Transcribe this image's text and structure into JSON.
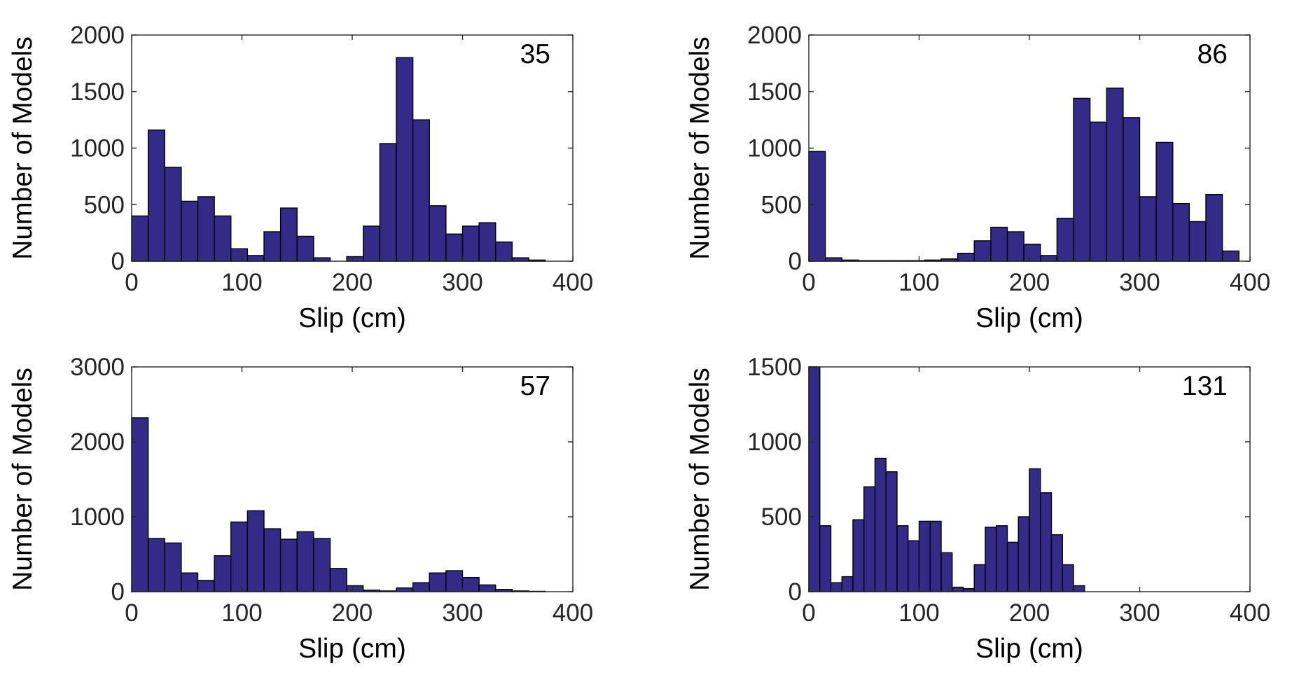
{
  "colors": {
    "bar": "#352a87",
    "edge": "#000000",
    "axis": "#262626"
  },
  "chart_data": [
    {
      "type": "bar",
      "annotation": "35",
      "xlabel": "Slip (cm)",
      "ylabel": "Number of Models",
      "xlim": [
        0,
        400
      ],
      "ylim": [
        0,
        2000
      ],
      "xticks": [
        0,
        100,
        200,
        300,
        400
      ],
      "yticks": [
        0,
        500,
        1000,
        1500,
        2000
      ],
      "bin_width": 15,
      "bin_start": 0,
      "values": [
        400,
        1160,
        830,
        530,
        570,
        400,
        110,
        50,
        260,
        470,
        220,
        30,
        0,
        40,
        310,
        1040,
        1800,
        1250,
        490,
        240,
        310,
        340,
        170,
        30,
        10,
        0
      ]
    },
    {
      "type": "bar",
      "annotation": "86",
      "xlabel": "Slip (cm)",
      "ylabel": "Number of Models",
      "xlim": [
        0,
        400
      ],
      "ylim": [
        0,
        2000
      ],
      "xticks": [
        0,
        100,
        200,
        300,
        400
      ],
      "yticks": [
        0,
        500,
        1000,
        1500,
        2000
      ],
      "bin_width": 15,
      "bin_start": 0,
      "values": [
        970,
        30,
        10,
        5,
        5,
        5,
        5,
        10,
        20,
        70,
        180,
        300,
        260,
        150,
        50,
        380,
        1440,
        1230,
        1530,
        1270,
        570,
        1050,
        510,
        350,
        590,
        90
      ]
    },
    {
      "type": "bar",
      "annotation": "57",
      "xlabel": "Slip (cm)",
      "ylabel": "Number of Models",
      "xlim": [
        0,
        400
      ],
      "ylim": [
        0,
        3000
      ],
      "xticks": [
        0,
        100,
        200,
        300,
        400
      ],
      "yticks": [
        0,
        1000,
        2000,
        3000
      ],
      "bin_width": 15,
      "bin_start": 0,
      "values": [
        2320,
        710,
        650,
        250,
        150,
        480,
        930,
        1080,
        840,
        700,
        800,
        710,
        310,
        80,
        20,
        10,
        50,
        120,
        250,
        280,
        190,
        90,
        30,
        10,
        5,
        0
      ]
    },
    {
      "type": "bar",
      "annotation": "131",
      "xlabel": "Slip (cm)",
      "ylabel": "Number of Models",
      "xlim": [
        0,
        400
      ],
      "ylim": [
        0,
        1500
      ],
      "xticks": [
        0,
        100,
        200,
        300,
        400
      ],
      "yticks": [
        0,
        500,
        1000,
        1500
      ],
      "bin_width": 10,
      "bin_start": 0,
      "values": [
        1500,
        440,
        60,
        100,
        480,
        700,
        890,
        800,
        440,
        340,
        470,
        470,
        260,
        30,
        20,
        180,
        430,
        440,
        330,
        500,
        820,
        660,
        380,
        180,
        40
      ]
    }
  ]
}
